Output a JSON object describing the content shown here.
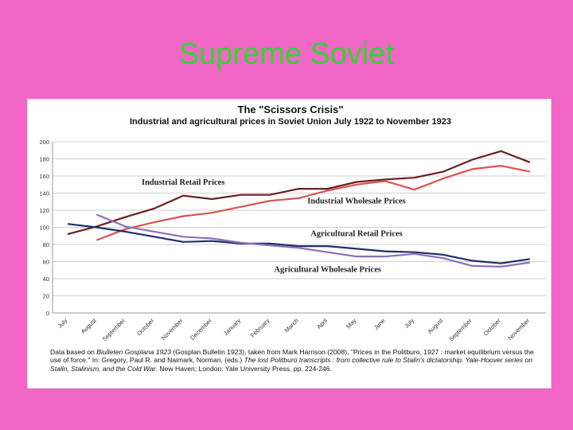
{
  "slide": {
    "title": "Supreme Soviet"
  },
  "chart_data": {
    "type": "line",
    "title": "The \"Scissors Crisis\"",
    "subtitle": "Industrial and agricultural prices in Soviet Union July 1922 to November 1923",
    "xlabel": "",
    "ylabel": "",
    "ylim": [
      0,
      200
    ],
    "yticks": [
      0,
      20,
      40,
      60,
      80,
      100,
      120,
      140,
      160,
      180,
      200
    ],
    "grid": true,
    "categories": [
      "July",
      "August",
      "September",
      "October",
      "November",
      "December",
      "January",
      "February",
      "March",
      "April",
      "May",
      "June",
      "July",
      "August",
      "September",
      "October",
      "November"
    ],
    "series": [
      {
        "name": "Industrial Retail Prices",
        "color": "#6b1f1f",
        "values": [
          92,
          101,
          112,
          122,
          137,
          133,
          138,
          138,
          145,
          145,
          153,
          156,
          158,
          165,
          179,
          189,
          176
        ]
      },
      {
        "name": "Industrial Wholesale Prices",
        "color": "#d9534f",
        "values": [
          null,
          85,
          98,
          106,
          113,
          117,
          124,
          131,
          134,
          143,
          150,
          154,
          144,
          157,
          168,
          172,
          165
        ]
      },
      {
        "name": "Agricultural Retail Prices",
        "color": "#1f2f6b",
        "values": [
          104,
          100,
          95,
          89,
          83,
          84,
          81,
          81,
          78,
          78,
          75,
          72,
          71,
          68,
          61,
          58,
          63
        ]
      },
      {
        "name": "Agricultural Wholesale Prices",
        "color": "#8e6fba",
        "values": [
          null,
          115,
          101,
          95,
          89,
          87,
          82,
          79,
          76,
          71,
          66,
          66,
          69,
          64,
          55,
          54,
          59
        ]
      }
    ],
    "annotations": [
      "Industrial Retail Prices",
      "Industrial Wholesale Prices",
      "Agricultural Retail Prices",
      "Agricultural Wholesale Prices"
    ],
    "source_note": {
      "p1": "Data based on ",
      "p1_italic": "Biulleten Gosplana 1923",
      "p2": " (Gosplan Bulletin 1923), taken from Mark Harrison (2008), \"Prices in the Politburo, 1927 : market equilibrium versus the use of force.\" In: Gregory, Paul R. and Naimark, Norman, (eds.) ",
      "p2_italic": "The lost Politburo transcripts : from collective rule to Stalin's dictatorship. Yale-Hoover series on Stalin, Stalinism, and the Cold War",
      "p3": ". New Haven; London: Yale University Press, pp. 224-246."
    }
  }
}
